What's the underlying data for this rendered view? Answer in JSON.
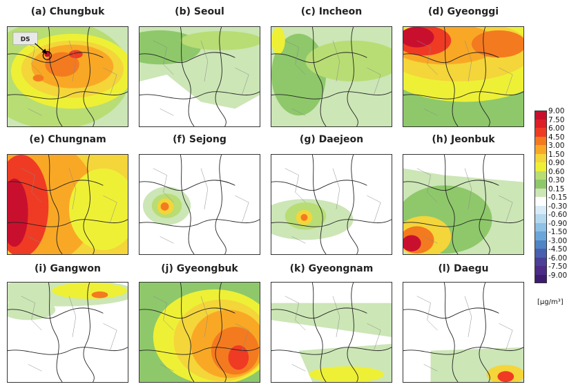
{
  "panels": [
    {
      "id": "a",
      "title": "(a) Chungbuk",
      "annotation": "DS"
    },
    {
      "id": "b",
      "title": "(b) Seoul"
    },
    {
      "id": "c",
      "title": "(c) Incheon"
    },
    {
      "id": "d",
      "title": "(d) Gyeonggi"
    },
    {
      "id": "e",
      "title": "(e) Chungnam"
    },
    {
      "id": "f",
      "title": "(f) Sejong"
    },
    {
      "id": "g",
      "title": "(g) Daejeon"
    },
    {
      "id": "h",
      "title": "(h) Jeonbuk"
    },
    {
      "id": "i",
      "title": "(i) Gangwon"
    },
    {
      "id": "j",
      "title": "(j) Gyeongbuk"
    },
    {
      "id": "k",
      "title": "(k) Gyeongnam"
    },
    {
      "id": "l",
      "title": "(l) Daegu"
    }
  ],
  "colorbar": {
    "unit": "[μg/m³]",
    "levels": [
      {
        "label": "9.00",
        "color": "#c8102e"
      },
      {
        "label": "7.50",
        "color": "#de1f26"
      },
      {
        "label": "6.00",
        "color": "#ef3b24"
      },
      {
        "label": "4.50",
        "color": "#f47a1f"
      },
      {
        "label": "3.00",
        "color": "#f9a825"
      },
      {
        "label": "1.50",
        "color": "#f4d53a"
      },
      {
        "label": "0.90",
        "color": "#eef036"
      },
      {
        "label": "0.60",
        "color": "#b8dd74"
      },
      {
        "label": "0.30",
        "color": "#8ec86a"
      },
      {
        "label": "0.15",
        "color": "#cce6b6"
      },
      {
        "label": "-0.15",
        "color": "#ffffff"
      },
      {
        "label": "-0.30",
        "color": "#d8ebf7"
      },
      {
        "label": "-0.60",
        "color": "#b4d8ef"
      },
      {
        "label": "-0.90",
        "color": "#8fc0e6"
      },
      {
        "label": "-1.50",
        "color": "#6aa6da"
      },
      {
        "label": "-3.00",
        "color": "#4f84c6"
      },
      {
        "label": "-4.50",
        "color": "#4860af"
      },
      {
        "label": "-6.00",
        "color": "#4b3f97"
      },
      {
        "label": "-7.50",
        "color": "#4b2b86"
      },
      {
        "label": "-9.00",
        "color": "#3d1b6e"
      }
    ]
  }
}
